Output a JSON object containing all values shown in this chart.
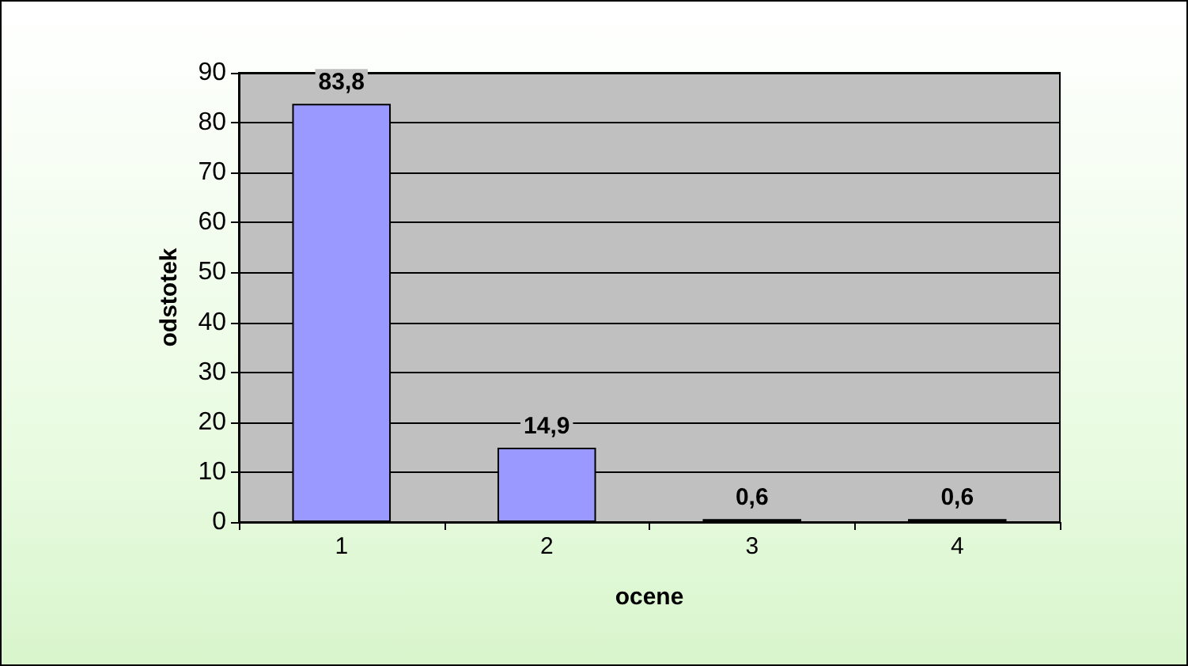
{
  "chart_data": {
    "type": "bar",
    "xlabel": "ocene",
    "ylabel": "odstotek",
    "categories": [
      "1",
      "2",
      "3",
      "4"
    ],
    "values": [
      83.8,
      14.9,
      0.6,
      0.6
    ],
    "color": "#9999ff",
    "value_labels": [
      "83,8",
      "14,9",
      "0,6",
      "0,6"
    ],
    "ylim": [
      0,
      90
    ],
    "yticks": [
      0,
      10,
      20,
      30,
      40,
      50,
      60,
      70,
      80,
      90
    ],
    "grid": "y"
  }
}
